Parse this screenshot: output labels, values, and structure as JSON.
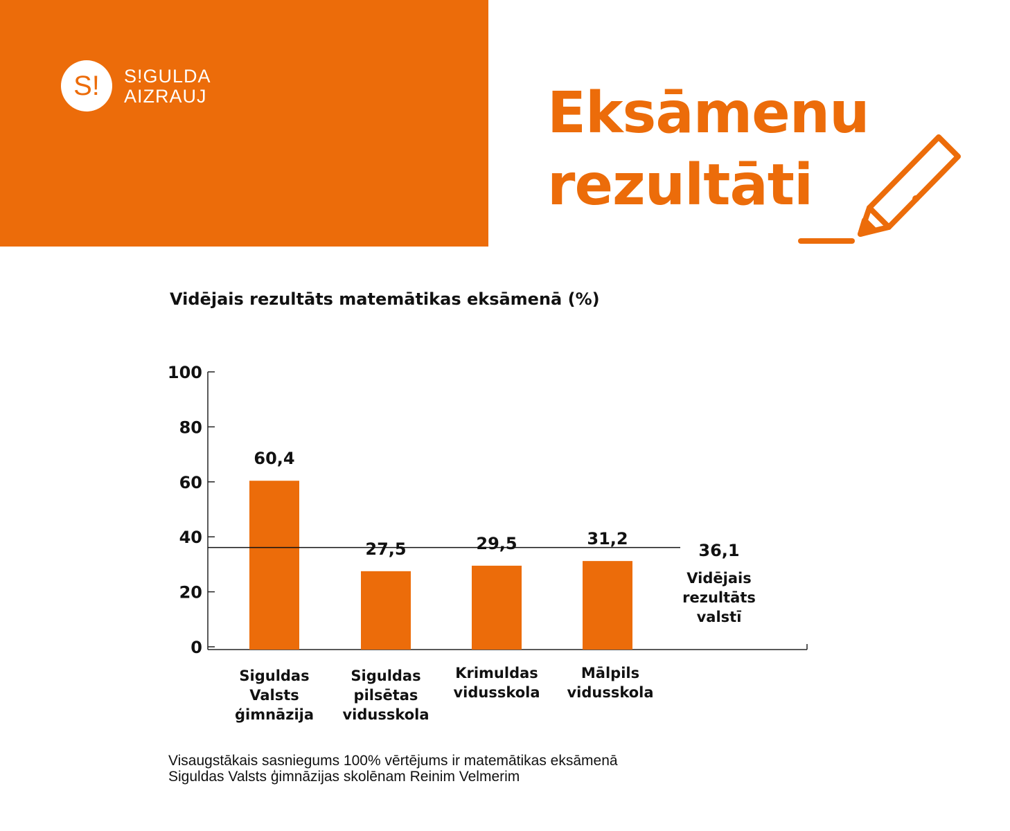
{
  "brand": {
    "logo_mark": "S!",
    "logo_line1": "S!GULDA",
    "logo_line2": "AIZRAUJ",
    "color": "#ec6c0a"
  },
  "header": {
    "title_line1": "Eksāmenu",
    "title_line2": "rezultāti",
    "icon": "pencil-icon"
  },
  "chart_data": {
    "type": "bar",
    "title": "Vidējais rezultāts matemātikas eksāmenā (%)",
    "categories": [
      [
        "Siguldas",
        "Valsts",
        "ģimnāzija"
      ],
      [
        "Siguldas",
        "pilsētas",
        "vidusskola"
      ],
      [
        "Krimuldas",
        "vidusskola"
      ],
      [
        "Mālpils",
        "vidusskola"
      ]
    ],
    "values": [
      60.4,
      27.5,
      29.5,
      31.2
    ],
    "value_labels": [
      "60,4",
      "27,5",
      "29,5",
      "31,2"
    ],
    "ylim": [
      0,
      100
    ],
    "yticks": [
      0,
      20,
      40,
      60,
      80,
      100
    ],
    "grid": false,
    "bar_color": "#ec6c0a",
    "reference_line": {
      "value": 36.1,
      "value_label": "36,1",
      "label": [
        "Vidējais",
        "rezultāts",
        "valstī"
      ]
    }
  },
  "footnote": {
    "line1": "Visaugstākais sasniegums 100% vērtējums ir matemātikas eksāmenā",
    "line2": "Siguldas Valsts ģimnāzijas skolēnam Reinim Velmerim"
  }
}
